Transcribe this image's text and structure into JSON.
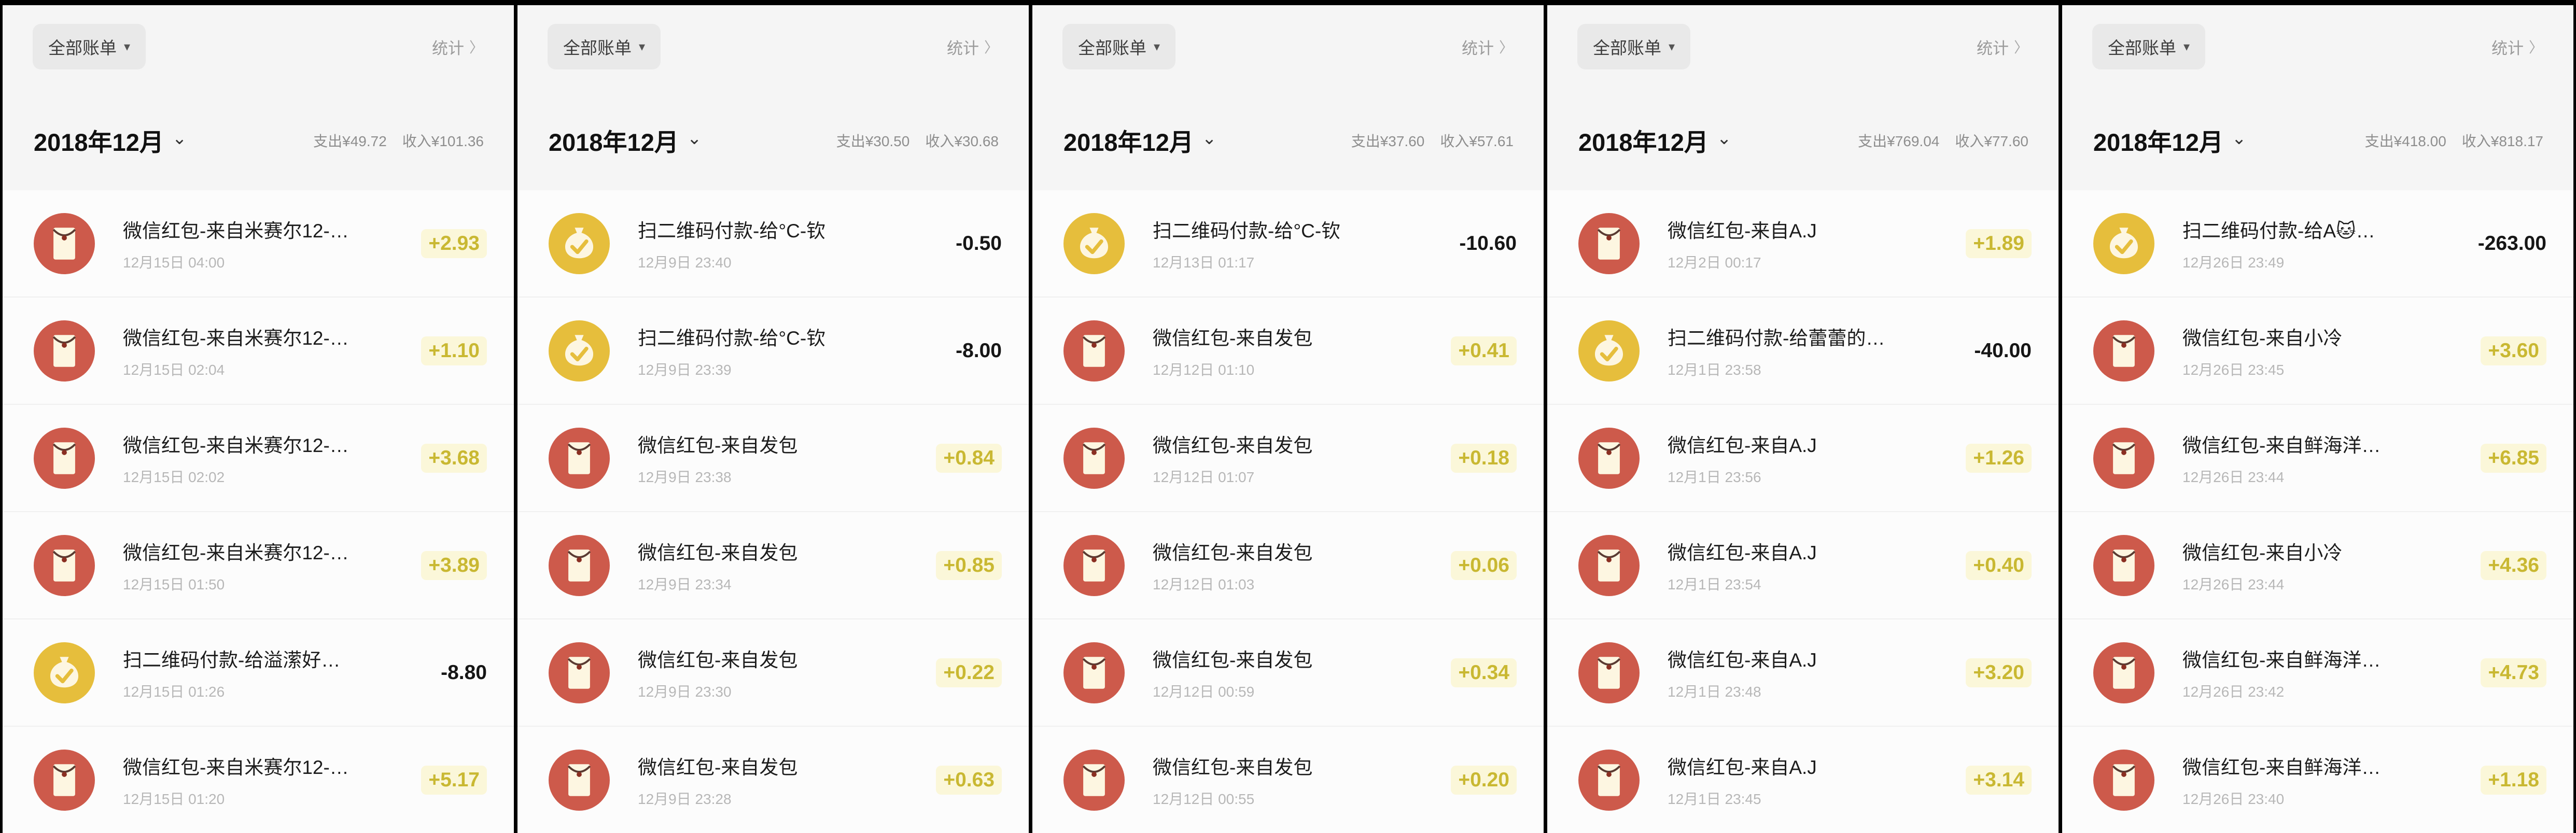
{
  "shared": {
    "filter_label": "全部账单",
    "stats_label": "统计",
    "colors": {
      "income": "#c9b832",
      "expense": "#161616",
      "envelope": "#cd5a4b",
      "moneybag": "#e6be3c"
    }
  },
  "panels": [
    {
      "month": {
        "label": "2018年12月",
        "expense": "支出¥49.72",
        "income": "收入¥101.36"
      },
      "transactions": [
        {
          "icon": "red-envelope",
          "name": "微信红包-来自米赛尔12-…",
          "date": "12月15日 04:00",
          "amount": "+2.93",
          "type": "income"
        },
        {
          "icon": "red-envelope",
          "name": "微信红包-来自米赛尔12-…",
          "date": "12月15日 02:04",
          "amount": "+1.10",
          "type": "income"
        },
        {
          "icon": "red-envelope",
          "name": "微信红包-来自米赛尔12-…",
          "date": "12月15日 02:02",
          "amount": "+3.68",
          "type": "income"
        },
        {
          "icon": "red-envelope",
          "name": "微信红包-来自米赛尔12-…",
          "date": "12月15日 01:50",
          "amount": "+3.89",
          "type": "income"
        },
        {
          "icon": "money-bag",
          "name": "扫二维码付款-给溢潆好…",
          "date": "12月15日 01:26",
          "amount": "-8.80",
          "type": "expense"
        },
        {
          "icon": "red-envelope",
          "name": "微信红包-来自米赛尔12-…",
          "date": "12月15日 01:20",
          "amount": "+5.17",
          "type": "income"
        }
      ]
    },
    {
      "month": {
        "label": "2018年12月",
        "expense": "支出¥30.50",
        "income": "收入¥30.68"
      },
      "transactions": [
        {
          "icon": "money-bag",
          "name": "扫二维码付款-给°C-钦",
          "date": "12月9日 23:40",
          "amount": "-0.50",
          "type": "expense"
        },
        {
          "icon": "money-bag",
          "name": "扫二维码付款-给°C-钦",
          "date": "12月9日 23:39",
          "amount": "-8.00",
          "type": "expense"
        },
        {
          "icon": "red-envelope",
          "name": "微信红包-来自发包",
          "date": "12月9日 23:38",
          "amount": "+0.84",
          "type": "income"
        },
        {
          "icon": "red-envelope",
          "name": "微信红包-来自发包",
          "date": "12月9日 23:34",
          "amount": "+0.85",
          "type": "income"
        },
        {
          "icon": "red-envelope",
          "name": "微信红包-来自发包",
          "date": "12月9日 23:30",
          "amount": "+0.22",
          "type": "income"
        },
        {
          "icon": "red-envelope",
          "name": "微信红包-来自发包",
          "date": "12月9日 23:28",
          "amount": "+0.63",
          "type": "income"
        }
      ]
    },
    {
      "month": {
        "label": "2018年12月",
        "expense": "支出¥37.60",
        "income": "收入¥57.61"
      },
      "transactions": [
        {
          "icon": "money-bag",
          "name": "扫二维码付款-给°C-钦",
          "date": "12月13日 01:17",
          "amount": "-10.60",
          "type": "expense"
        },
        {
          "icon": "red-envelope",
          "name": "微信红包-来自发包",
          "date": "12月12日 01:10",
          "amount": "+0.41",
          "type": "income"
        },
        {
          "icon": "red-envelope",
          "name": "微信红包-来自发包",
          "date": "12月12日 01:07",
          "amount": "+0.18",
          "type": "income"
        },
        {
          "icon": "red-envelope",
          "name": "微信红包-来自发包",
          "date": "12月12日 01:03",
          "amount": "+0.06",
          "type": "income"
        },
        {
          "icon": "red-envelope",
          "name": "微信红包-来自发包",
          "date": "12月12日 00:59",
          "amount": "+0.34",
          "type": "income"
        },
        {
          "icon": "red-envelope",
          "name": "微信红包-来自发包",
          "date": "12月12日 00:55",
          "amount": "+0.20",
          "type": "income"
        }
      ]
    },
    {
      "month": {
        "label": "2018年12月",
        "expense": "支出¥769.04",
        "income": "收入¥77.60"
      },
      "transactions": [
        {
          "icon": "red-envelope",
          "name": "微信红包-来自A.J",
          "date": "12月2日 00:17",
          "amount": "+1.89",
          "type": "income"
        },
        {
          "icon": "money-bag",
          "name": "扫二维码付款-给蕾蕾的…",
          "date": "12月1日 23:58",
          "amount": "-40.00",
          "type": "expense"
        },
        {
          "icon": "red-envelope",
          "name": "微信红包-来自A.J",
          "date": "12月1日 23:56",
          "amount": "+1.26",
          "type": "income"
        },
        {
          "icon": "red-envelope",
          "name": "微信红包-来自A.J",
          "date": "12月1日 23:54",
          "amount": "+0.40",
          "type": "income"
        },
        {
          "icon": "red-envelope",
          "name": "微信红包-来自A.J",
          "date": "12月1日 23:48",
          "amount": "+3.20",
          "type": "income"
        },
        {
          "icon": "red-envelope",
          "name": "微信红包-来自A.J",
          "date": "12月1日 23:45",
          "amount": "+3.14",
          "type": "income"
        }
      ]
    },
    {
      "month": {
        "label": "2018年12月",
        "expense": "支出¥418.00",
        "income": "收入¥818.17"
      },
      "transactions": [
        {
          "icon": "money-bag",
          "name": "扫二维码付款-给A🐱…",
          "date": "12月26日 23:49",
          "amount": "-263.00",
          "type": "expense"
        },
        {
          "icon": "red-envelope",
          "name": "微信红包-来自小冷",
          "date": "12月26日 23:45",
          "amount": "+3.60",
          "type": "income"
        },
        {
          "icon": "red-envelope",
          "name": "微信红包-来自鲜海洋…",
          "date": "12月26日 23:44",
          "amount": "+6.85",
          "type": "income"
        },
        {
          "icon": "red-envelope",
          "name": "微信红包-来自小冷",
          "date": "12月26日 23:44",
          "amount": "+4.36",
          "type": "income"
        },
        {
          "icon": "red-envelope",
          "name": "微信红包-来自鲜海洋…",
          "date": "12月26日 23:42",
          "amount": "+4.73",
          "type": "income"
        },
        {
          "icon": "red-envelope",
          "name": "微信红包-来自鲜海洋…",
          "date": "12月26日 23:40",
          "amount": "+1.18",
          "type": "income"
        }
      ]
    }
  ]
}
